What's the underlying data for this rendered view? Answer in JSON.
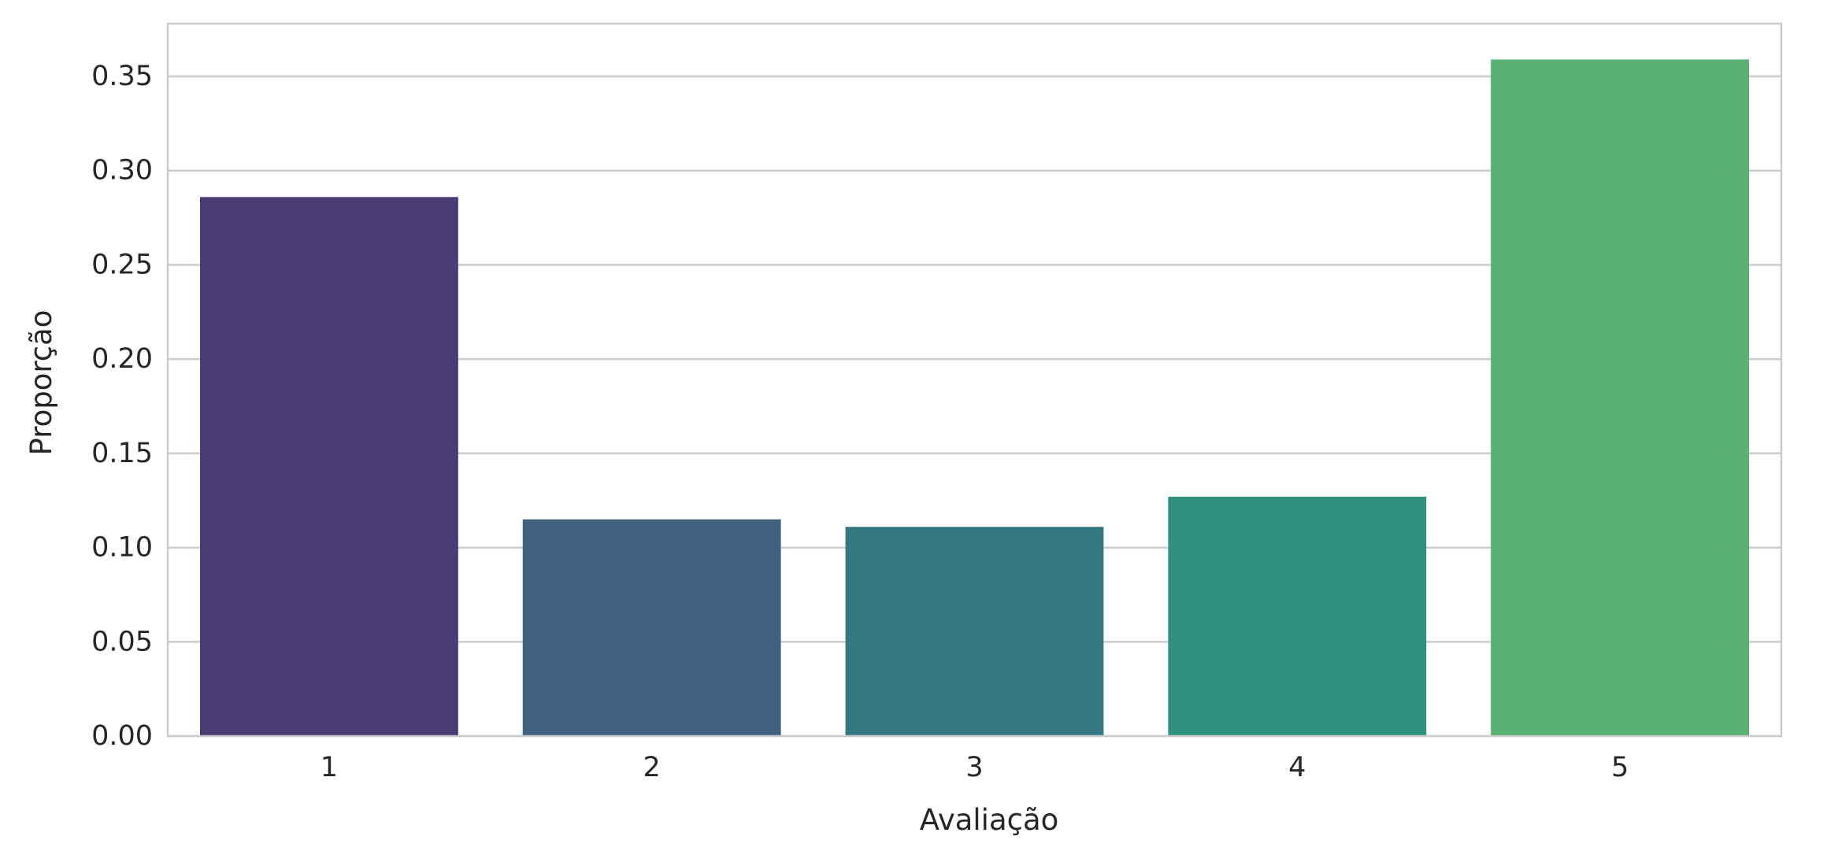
{
  "chart_data": {
    "type": "bar",
    "title": "",
    "xlabel": "Avaliação",
    "ylabel": "Proporção",
    "categories": [
      "1",
      "2",
      "3",
      "4",
      "5"
    ],
    "values": [
      0.286,
      0.115,
      0.111,
      0.127,
      0.359
    ],
    "colors": [
      "#4a3c74",
      "#416180",
      "#347781",
      "#31917e",
      "#5ab174"
    ],
    "ylim": [
      0,
      0.378
    ],
    "yticks": [
      "0.00",
      "0.05",
      "0.10",
      "0.15",
      "0.20",
      "0.25",
      "0.30",
      "0.35"
    ],
    "grid": true,
    "grid_axis": "y",
    "grid_color": "#cccccc",
    "axes_edge_color": "#cccccc",
    "background_color": "#ffffff"
  }
}
